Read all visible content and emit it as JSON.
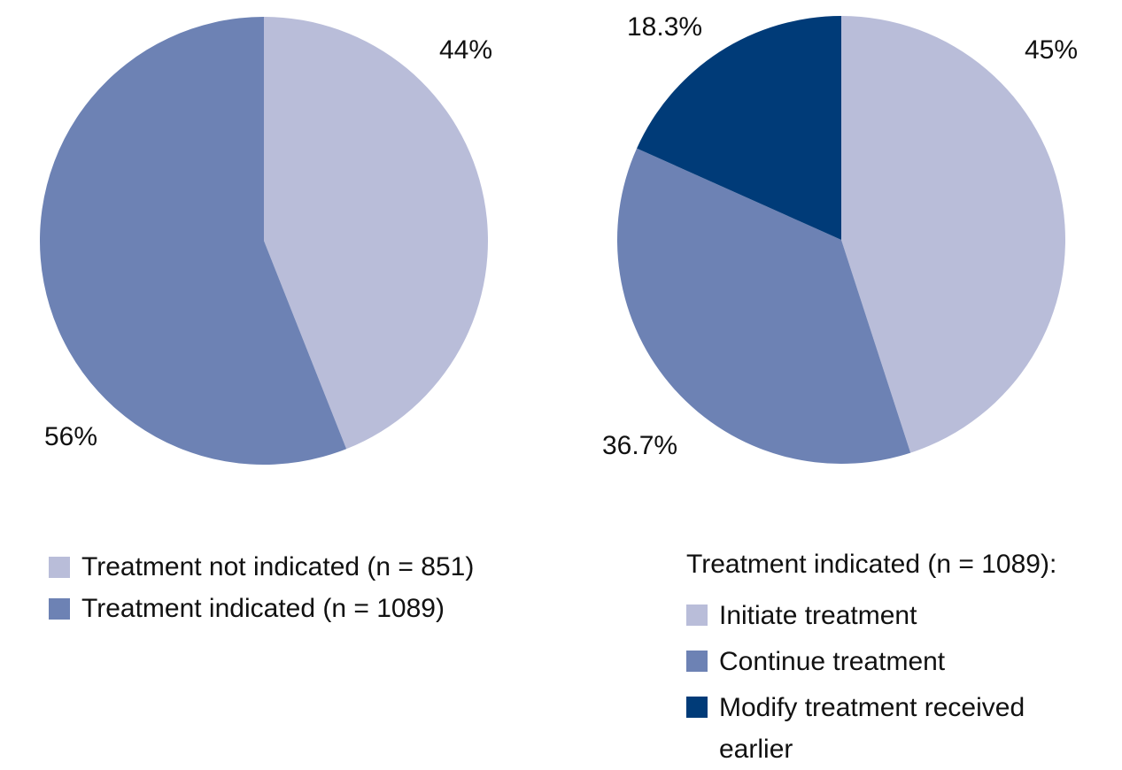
{
  "figure": {
    "background": "#ffffff",
    "text_color": "#111111"
  },
  "colors": {
    "light_blue": "#b9bdd9",
    "medium_blue": "#6d82b4",
    "dark_blue": "#003b78"
  },
  "chart_data": [
    {
      "type": "pie",
      "direction": "clockwise",
      "start": "top",
      "title": "",
      "slices": [
        {
          "label": "Treatment not indicated (n = 851)",
          "value": 44,
          "display": "44%",
          "color": "#b9bdd9"
        },
        {
          "label": "Treatment indicated (n = 1089)",
          "value": 56,
          "display": "56%",
          "color": "#6d82b4"
        }
      ],
      "legend": {
        "items": [
          {
            "label": "Treatment not indicated (n = 851)",
            "color": "#b9bdd9"
          },
          {
            "label": "Treatment indicated (n = 1089)",
            "color": "#6d82b4"
          }
        ]
      }
    },
    {
      "type": "pie",
      "direction": "clockwise",
      "start": "top",
      "title": "",
      "slices": [
        {
          "label": "Initiate treatment",
          "value": 45,
          "display": "45%",
          "color": "#b9bdd9"
        },
        {
          "label": "Continue treatment",
          "value": 36.7,
          "display": "36.7%",
          "color": "#6d82b4"
        },
        {
          "label": "Modify treatment received earlier",
          "value": 18.3,
          "display": "18.3%",
          "color": "#003b78"
        }
      ],
      "legend": {
        "title": "Treatment indicated (n = 1089):",
        "items": [
          {
            "label": "Initiate treatment",
            "color": "#b9bdd9"
          },
          {
            "label": "Continue treatment",
            "color": "#6d82b4"
          },
          {
            "label": "Modify treatment received earlier",
            "color": "#003b78"
          }
        ]
      }
    }
  ]
}
